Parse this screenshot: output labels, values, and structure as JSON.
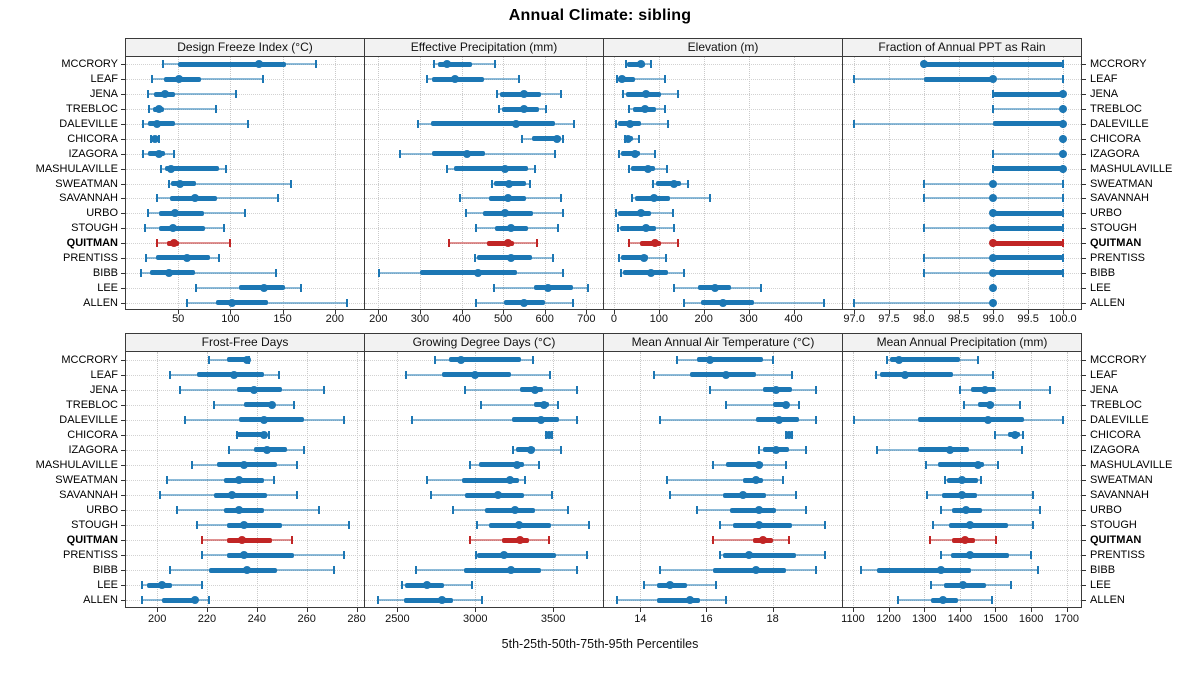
{
  "title": "Annual Climate: sibling",
  "footer": "5th-25th-50th-75th-95th Percentiles",
  "percentile_labels": [
    "5th",
    "25th",
    "50th",
    "75th",
    "95th"
  ],
  "categories": [
    "MCCRORY",
    "LEAF",
    "JENA",
    "TREBLOC",
    "DALEVILLE",
    "CHICORA",
    "IZAGORA",
    "MASHULAVILLE",
    "SWEATMAN",
    "SAVANNAH",
    "URBO",
    "STOUGH",
    "QUITMAN",
    "PRENTISS",
    "BIBB",
    "LEE",
    "ALLEN"
  ],
  "highlight_category": "QUITMAN",
  "colors": {
    "series": "#1C77B4",
    "highlight": "#C12525",
    "header_bg": "#F2F2F2",
    "panel_border": "#3A3A3A",
    "grid": "#CFCFCF"
  },
  "chart_data": [
    {
      "type": "dotplot-interval",
      "row": 1,
      "title": "Design Freeze Index (°C)",
      "xlim": [
        0,
        228
      ],
      "ticks": [
        50,
        100,
        150,
        200
      ],
      "tick_labels": [
        "50",
        "100",
        "150",
        "200"
      ],
      "values": [
        [
          35,
          50,
          127,
          153,
          182
        ],
        [
          25,
          36,
          51,
          72,
          131
        ],
        [
          21,
          27,
          37,
          47,
          105
        ],
        [
          22,
          26,
          32,
          36,
          86
        ],
        [
          16,
          21,
          30,
          47,
          117
        ],
        [
          24,
          25,
          28,
          31,
          32
        ],
        [
          16,
          21,
          32,
          37,
          46
        ],
        [
          34,
          37,
          43,
          89,
          96
        ],
        [
          41,
          43,
          52,
          67,
          158
        ],
        [
          30,
          42,
          66,
          87,
          146
        ],
        [
          21,
          32,
          47,
          75,
          114
        ],
        [
          18,
          32,
          45,
          76,
          94
        ],
        [
          30,
          39,
          46,
          51,
          100
        ],
        [
          19,
          29,
          58,
          80,
          89
        ],
        [
          14,
          23,
          41,
          66,
          144
        ],
        [
          67,
          108,
          132,
          152,
          168
        ],
        [
          58,
          86,
          102,
          136,
          212
        ]
      ]
    },
    {
      "type": "dotplot-interval",
      "row": 1,
      "title": "Effective Precipitation (mm)",
      "xlim": [
        168,
        740
      ],
      "ticks": [
        200,
        300,
        400,
        500,
        600,
        700
      ],
      "tick_labels": [
        "200",
        "300",
        "400",
        "500",
        "600",
        "700"
      ],
      "values": [
        [
          334,
          344,
          366,
          426,
          481
        ],
        [
          318,
          329,
          385,
          455,
          538
        ],
        [
          485,
          492,
          550,
          592,
          638
        ],
        [
          490,
          498,
          550,
          586,
          604
        ],
        [
          296,
          326,
          530,
          625,
          670
        ],
        [
          545,
          570,
          630,
          640,
          645
        ],
        [
          251,
          329,
          414,
          456,
          625
        ],
        [
          366,
          382,
          504,
          560,
          576
        ],
        [
          474,
          478,
          513,
          556,
          565
        ],
        [
          396,
          466,
          511,
          556,
          638
        ],
        [
          411,
          452,
          505,
          571,
          645
        ],
        [
          434,
          481,
          520,
          560,
          632
        ],
        [
          371,
          462,
          512,
          526,
          581
        ],
        [
          432,
          436,
          519,
          569,
          619
        ],
        [
          202,
          301,
          439,
          534,
          645
        ],
        [
          478,
          574,
          609,
          669,
          705
        ],
        [
          434,
          501,
          550,
          601,
          669
        ]
      ]
    },
    {
      "type": "dotplot-interval",
      "row": 1,
      "title": "Elevation (m)",
      "xlim": [
        -22,
        508
      ],
      "ticks": [
        0,
        100,
        200,
        300,
        400
      ],
      "tick_labels": [
        "0",
        "100",
        "200",
        "300",
        "400"
      ],
      "values": [
        [
          26,
          30,
          61,
          69,
          83
        ],
        [
          7,
          10,
          19,
          46,
          114
        ],
        [
          21,
          28,
          72,
          105,
          142
        ],
        [
          33,
          43,
          69,
          94,
          113
        ],
        [
          4,
          10,
          37,
          61,
          120
        ],
        [
          24,
          26,
          32,
          43,
          56
        ],
        [
          12,
          15,
          48,
          58,
          92
        ],
        [
          34,
          39,
          76,
          92,
          118
        ],
        [
          87,
          94,
          134,
          150,
          166
        ],
        [
          41,
          46,
          89,
          124,
          213
        ],
        [
          4,
          10,
          60,
          83,
          131
        ],
        [
          10,
          13,
          72,
          94,
          134
        ],
        [
          34,
          58,
          91,
          105,
          142
        ],
        [
          12,
          15,
          67,
          75,
          117
        ],
        [
          15,
          21,
          83,
          120,
          157
        ],
        [
          133,
          187,
          225,
          260,
          327
        ],
        [
          157,
          194,
          242,
          312,
          468
        ]
      ]
    },
    {
      "type": "dotplot-interval",
      "row": 1,
      "title": "Fraction of Annual PPT as Rain",
      "xlim": [
        96.84,
        100.26
      ],
      "ticks": [
        97.0,
        97.5,
        98.0,
        98.5,
        99.0,
        99.5,
        100.0
      ],
      "tick_labels": [
        "97.0",
        "97.5",
        "98.0",
        "98.5",
        "99.0",
        "99.5",
        "100.0"
      ],
      "values": [
        [
          98.0,
          98.0,
          98.0,
          100.0,
          100.0
        ],
        [
          97.0,
          98.0,
          99.0,
          99.0,
          100.0
        ],
        [
          99.0,
          99.0,
          100.0,
          100.0,
          100.0
        ],
        [
          99.0,
          100.0,
          100.0,
          100.0,
          100.0
        ],
        [
          97.0,
          99.0,
          100.0,
          100.0,
          100.0
        ],
        [
          100.0,
          100.0,
          100.0,
          100.0,
          100.0
        ],
        [
          99.0,
          100.0,
          100.0,
          100.0,
          100.0
        ],
        [
          99.0,
          99.0,
          100.0,
          100.0,
          100.0
        ],
        [
          98.0,
          99.0,
          99.0,
          99.0,
          100.0
        ],
        [
          98.0,
          99.0,
          99.0,
          99.0,
          100.0
        ],
        [
          99.0,
          99.0,
          99.0,
          100.0,
          100.0
        ],
        [
          98.0,
          99.0,
          99.0,
          100.0,
          100.0
        ],
        [
          99.0,
          99.0,
          99.0,
          100.0,
          100.0
        ],
        [
          98.0,
          99.0,
          99.0,
          100.0,
          100.0
        ],
        [
          98.0,
          99.0,
          99.0,
          100.0,
          100.0
        ],
        [
          99.0,
          99.0,
          99.0,
          99.0,
          99.0
        ],
        [
          97.0,
          99.0,
          99.0,
          99.0,
          99.0
        ]
      ]
    },
    {
      "type": "dotplot-interval",
      "row": 2,
      "title": "Frost-Free Days",
      "xlim": [
        187.5,
        283
      ],
      "ticks": [
        200,
        220,
        240,
        260,
        280
      ],
      "tick_labels": [
        "200",
        "220",
        "240",
        "260",
        "280"
      ],
      "values": [
        [
          221,
          228,
          236,
          237,
          237
        ],
        [
          205,
          216,
          231,
          243,
          249
        ],
        [
          209,
          232,
          239,
          250,
          267
        ],
        [
          223,
          235,
          246,
          247,
          255
        ],
        [
          211,
          233,
          243,
          259,
          275
        ],
        [
          232,
          232,
          243,
          244,
          245
        ],
        [
          229,
          239,
          244,
          252,
          259
        ],
        [
          214,
          224,
          235,
          248,
          256
        ],
        [
          204,
          227,
          233,
          243,
          247
        ],
        [
          201,
          223,
          230,
          244,
          256
        ],
        [
          208,
          227,
          233,
          243,
          265
        ],
        [
          216,
          228,
          235,
          250,
          277
        ],
        [
          218,
          228,
          234,
          246,
          254
        ],
        [
          218,
          228,
          235,
          255,
          275
        ],
        [
          205,
          221,
          236,
          248,
          271
        ],
        [
          194,
          196,
          202,
          206,
          218
        ],
        [
          194,
          202,
          215,
          216,
          221
        ]
      ]
    },
    {
      "type": "dotplot-interval",
      "row": 2,
      "title": "Growing Degree Days (°C)",
      "xlim": [
        2292,
        3820
      ],
      "ticks": [
        2500,
        3000,
        3500
      ],
      "tick_labels": [
        "2500",
        "3000",
        "3500"
      ],
      "values": [
        [
          2742,
          2832,
          2907,
          3293,
          3372
        ],
        [
          2558,
          2789,
          3000,
          3229,
          3479
        ],
        [
          2935,
          3286,
          3385,
          3436,
          3650
        ],
        [
          3036,
          3379,
          3443,
          3471,
          3529
        ],
        [
          2592,
          3235,
          3421,
          3535,
          3655
        ],
        [
          3454,
          3460,
          3471,
          3485,
          3492
        ],
        [
          3244,
          3261,
          3357,
          3385,
          3550
        ],
        [
          2965,
          3025,
          3267,
          3314,
          3406
        ],
        [
          2693,
          2914,
          3224,
          3278,
          3319
        ],
        [
          2714,
          2935,
          3143,
          3314,
          3492
        ],
        [
          2855,
          3064,
          3257,
          3385,
          3593
        ],
        [
          3014,
          3085,
          3282,
          3486,
          3728
        ],
        [
          2965,
          3171,
          3286,
          3346,
          3471
        ],
        [
          3004,
          3014,
          3186,
          3518,
          3715
        ],
        [
          2622,
          2929,
          3229,
          3421,
          3650
        ],
        [
          2528,
          2549,
          2693,
          2800,
          2982
        ],
        [
          2378,
          2543,
          2785,
          2860,
          3042
        ]
      ]
    },
    {
      "type": "dotplot-interval",
      "row": 2,
      "title": "Mean Annual Air Temperature (°C)",
      "xlim": [
        12.9,
        20.1
      ],
      "ticks": [
        14,
        16,
        18
      ],
      "tick_labels": [
        "14",
        "16",
        "18"
      ],
      "values": [
        [
          15.1,
          15.7,
          16.1,
          17.7,
          18.0
        ],
        [
          14.4,
          15.5,
          16.6,
          17.5,
          18.6
        ],
        [
          16.1,
          17.7,
          18.1,
          18.6,
          19.3
        ],
        [
          16.6,
          18.0,
          18.4,
          18.5,
          18.8
        ],
        [
          14.6,
          17.5,
          18.2,
          18.8,
          19.3
        ],
        [
          18.4,
          18.4,
          18.5,
          18.6,
          18.6
        ],
        [
          17.6,
          17.7,
          18.1,
          18.5,
          19.0
        ],
        [
          16.2,
          16.6,
          17.6,
          17.7,
          18.4
        ],
        [
          14.8,
          17.1,
          17.5,
          17.7,
          18.3
        ],
        [
          14.9,
          16.5,
          17.1,
          17.8,
          18.7
        ],
        [
          15.7,
          16.7,
          17.6,
          18.1,
          19.0
        ],
        [
          16.4,
          16.8,
          17.6,
          18.6,
          19.6
        ],
        [
          16.2,
          17.4,
          17.7,
          18.0,
          18.5
        ],
        [
          16.4,
          16.5,
          17.3,
          18.7,
          19.6
        ],
        [
          14.6,
          16.2,
          17.5,
          18.4,
          19.3
        ],
        [
          14.1,
          14.5,
          14.9,
          15.4,
          16.3
        ],
        [
          13.3,
          14.5,
          15.5,
          15.8,
          16.6
        ]
      ]
    },
    {
      "type": "dotplot-interval",
      "row": 2,
      "title": "Mean Annual Precipitation (mm)",
      "xlim": [
        1072,
        1740
      ],
      "ticks": [
        1100,
        1200,
        1300,
        1400,
        1500,
        1600,
        1700
      ],
      "tick_labels": [
        "1100",
        "1200",
        "1300",
        "1400",
        "1500",
        "1600",
        "1700"
      ],
      "values": [
        [
          1195,
          1203,
          1230,
          1400,
          1450
        ],
        [
          1166,
          1177,
          1247,
          1381,
          1493
        ],
        [
          1399,
          1430,
          1470,
          1502,
          1653
        ],
        [
          1413,
          1452,
          1484,
          1496,
          1569
        ],
        [
          1102,
          1283,
          1480,
          1580,
          1690
        ],
        [
          1500,
          1535,
          1555,
          1568,
          1577
        ],
        [
          1168,
          1283,
          1372,
          1425,
          1574
        ],
        [
          1304,
          1339,
          1451,
          1468,
          1508
        ],
        [
          1357,
          1363,
          1405,
          1450,
          1458
        ],
        [
          1308,
          1350,
          1405,
          1447,
          1606
        ],
        [
          1348,
          1378,
          1416,
          1463,
          1625
        ],
        [
          1325,
          1369,
          1428,
          1535,
          1604
        ],
        [
          1315,
          1378,
          1414,
          1442,
          1502
        ],
        [
          1348,
          1374,
          1428,
          1538,
          1599
        ],
        [
          1123,
          1168,
          1348,
          1430,
          1620
        ],
        [
          1318,
          1355,
          1410,
          1474,
          1543
        ],
        [
          1226,
          1319,
          1353,
          1395,
          1489
        ]
      ]
    }
  ]
}
